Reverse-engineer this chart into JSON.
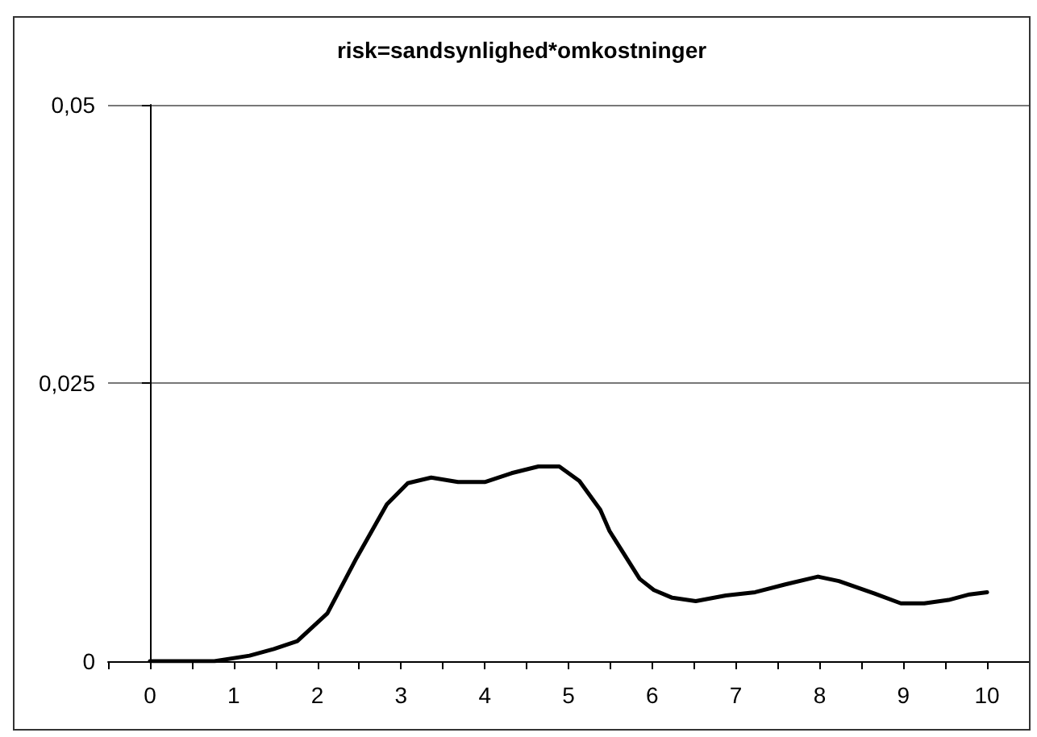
{
  "chart_data": {
    "type": "line",
    "title": "risk=sandsynlighed*omkostninger",
    "x": [
      0,
      0.77,
      1.19,
      1.48,
      1.76,
      2.12,
      2.47,
      2.83,
      3.08,
      3.36,
      3.68,
      4.0,
      4.32,
      4.64,
      4.89,
      5.13,
      5.38,
      5.49,
      5.85,
      6.02,
      6.24,
      6.52,
      6.88,
      7.23,
      7.59,
      7.98,
      8.23,
      8.65,
      8.97,
      9.25,
      9.54,
      9.79,
      10.0
    ],
    "series": [
      {
        "color": "#000000",
        "values": [
          0,
          0,
          0.0005,
          0.0011,
          0.0018,
          0.0043,
          0.0093,
          0.0141,
          0.016,
          0.0165,
          0.0161,
          0.0161,
          0.0169,
          0.0175,
          0.0175,
          0.0162,
          0.0136,
          0.0117,
          0.0074,
          0.0064,
          0.0057,
          0.0054,
          0.0059,
          0.0062,
          0.0069,
          0.0076,
          0.0072,
          0.0061,
          0.0052,
          0.0052,
          0.0055,
          0.006,
          0.0062
        ]
      }
    ],
    "xlim": [
      -0.5,
      10.5
    ],
    "xticks": [
      {
        "value": -0.5,
        "label": null
      },
      0,
      {
        "value": 0.5,
        "label": null
      },
      1,
      {
        "value": 1.5,
        "label": null
      },
      2,
      {
        "value": 2.5,
        "label": null
      },
      3,
      {
        "value": 3.5,
        "label": null
      },
      4,
      {
        "value": 4.5,
        "label": null
      },
      5,
      {
        "value": 5.5,
        "label": null
      },
      6,
      {
        "value": 6.5,
        "label": null
      },
      7,
      {
        "value": 7.5,
        "label": null
      },
      8,
      {
        "value": 8.5,
        "label": null
      },
      9,
      {
        "value": 9.5,
        "label": null
      },
      10
    ],
    "ylim": [
      0,
      0.05
    ],
    "yticks": [
      0,
      {
        "value": 0.025,
        "label": "0,025"
      },
      {
        "value": 0.05,
        "label": "0,05"
      }
    ],
    "grid": "y",
    "marker": "none",
    "line_style": "solid"
  }
}
